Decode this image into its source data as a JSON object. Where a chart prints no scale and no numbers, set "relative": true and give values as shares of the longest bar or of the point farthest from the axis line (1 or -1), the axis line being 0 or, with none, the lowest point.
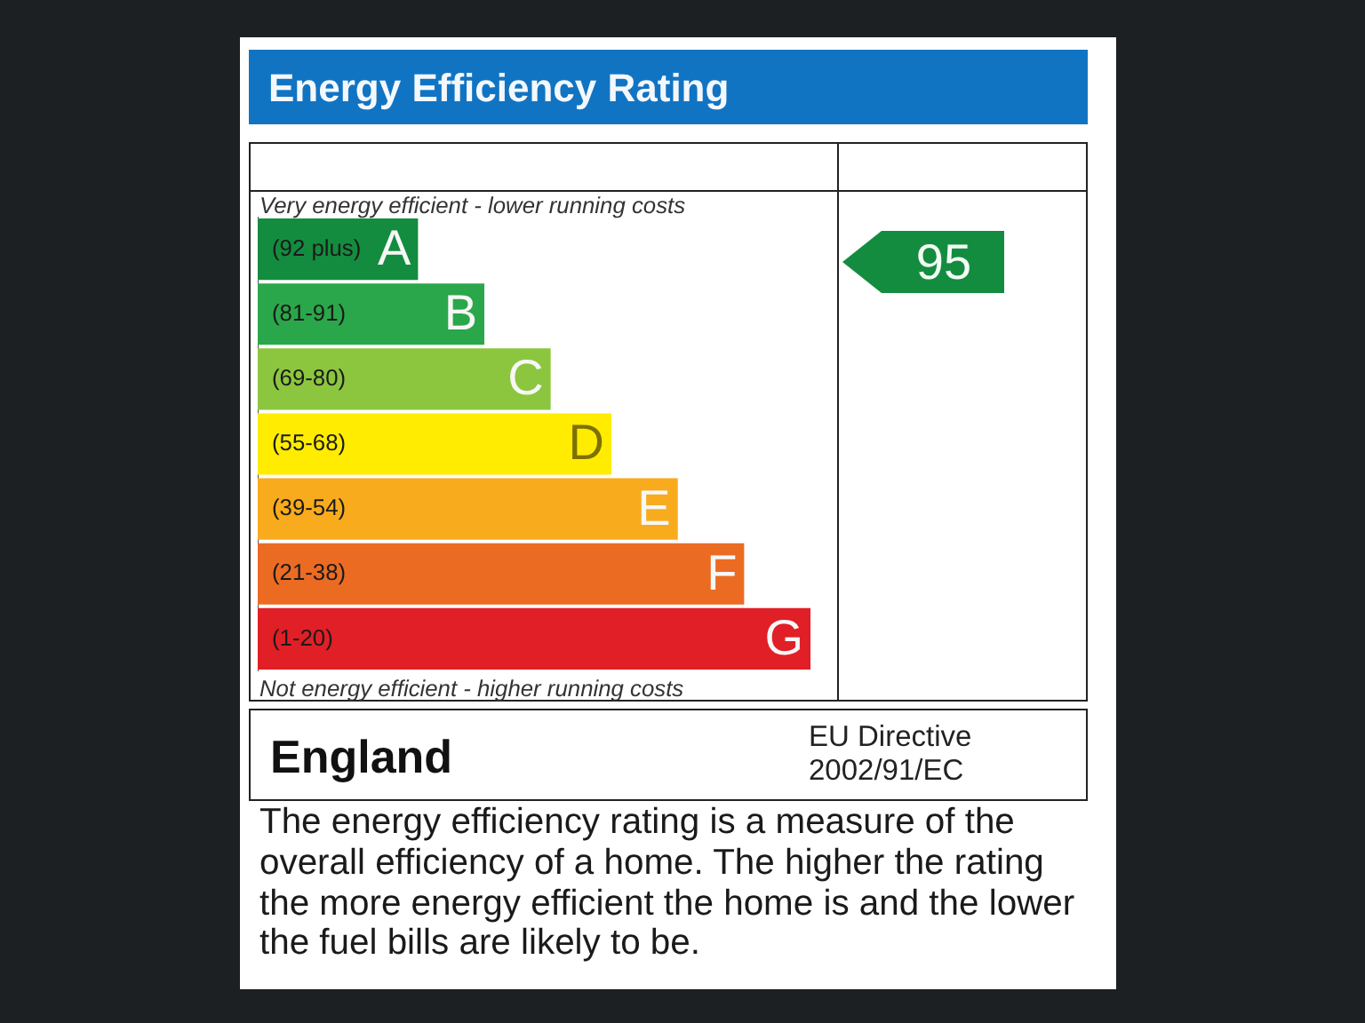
{
  "chart_data": {
    "type": "bar",
    "orientation": "horizontal",
    "relative": true,
    "title": "Energy Efficiency Rating",
    "categories": [
      "A",
      "B",
      "C",
      "D",
      "E",
      "F",
      "G"
    ],
    "values": [
      0.29,
      0.41,
      0.53,
      0.64,
      0.76,
      0.88,
      1
    ],
    "colors": [
      "#148c3f",
      "#2aa74a",
      "#8cc63f",
      "#ffec00",
      "#f8ab1c",
      "#ec6b23",
      "#e11f26"
    ],
    "annotations": [
      "Very energy efficient - lower running costs",
      "Not energy efficient - higher running costs",
      "England",
      "EU Directive 2002/91/EC",
      "The energy efficiency rating is a measure of the overall efficiency of a home. The higher the rating the more energy efficient the home is and the lower the fuel bills are likely to be.",
      "95",
      "(92 plus)",
      "(81-91)",
      "(69-80)",
      "(55-68)",
      "(39-54)",
      "(21-38)",
      "(1-20)"
    ]
  }
}
